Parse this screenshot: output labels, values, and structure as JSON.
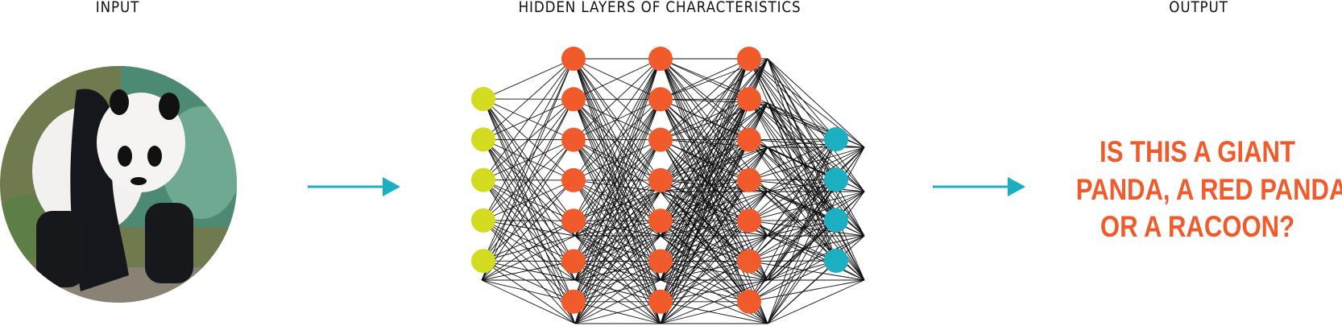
{
  "labels": {
    "input": "INPUT",
    "hidden": "HIDDEN LAYERS OF CHARACTERISTICS",
    "output": "OUTPUT"
  },
  "question": [
    "IS THIS A GIANT",
    "PANDA, A RED PANDA",
    "OR A RACOON?"
  ],
  "input_image": "giant panda photo",
  "network": {
    "layers": [
      {
        "nodes": 5,
        "color": "#d4dc22"
      },
      {
        "nodes": 7,
        "color": "#f15a2b"
      },
      {
        "nodes": 7,
        "color": "#f15a2b"
      },
      {
        "nodes": 7,
        "color": "#f15a2b"
      },
      {
        "nodes": 4,
        "color": "#1cafc1"
      }
    ]
  },
  "colors": {
    "arrow": "#1cafc1",
    "question": "#f15a2b",
    "text": "#111111"
  }
}
